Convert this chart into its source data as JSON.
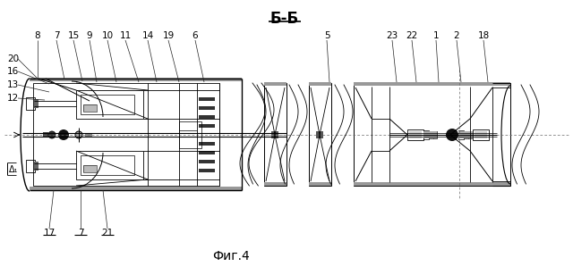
{
  "title": "Б-Б",
  "caption": "Фиг.4",
  "bg_color": "#ffffff",
  "line_color": "#000000",
  "title_fontsize": 12,
  "caption_fontsize": 10
}
